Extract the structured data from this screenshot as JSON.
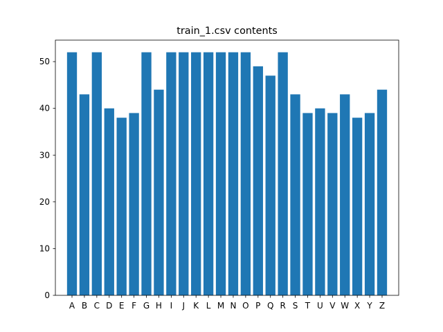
{
  "chart_data": {
    "type": "bar",
    "title": "train_1.csv contents",
    "xlabel": "",
    "ylabel": "",
    "categories": [
      "A",
      "B",
      "C",
      "D",
      "E",
      "F",
      "G",
      "H",
      "I",
      "J",
      "K",
      "L",
      "M",
      "N",
      "O",
      "P",
      "Q",
      "R",
      "S",
      "T",
      "U",
      "V",
      "W",
      "X",
      "Y",
      "Z"
    ],
    "values": [
      52,
      43,
      52,
      40,
      38,
      39,
      52,
      44,
      52,
      52,
      52,
      52,
      52,
      52,
      52,
      49,
      47,
      52,
      43,
      39,
      40,
      39,
      43,
      38,
      39,
      44
    ],
    "ylim": [
      0,
      54.6
    ],
    "yticks": [
      0,
      10,
      20,
      30,
      40,
      50
    ],
    "bar_color": "#1f77b4",
    "grid": false,
    "legend": "none"
  }
}
